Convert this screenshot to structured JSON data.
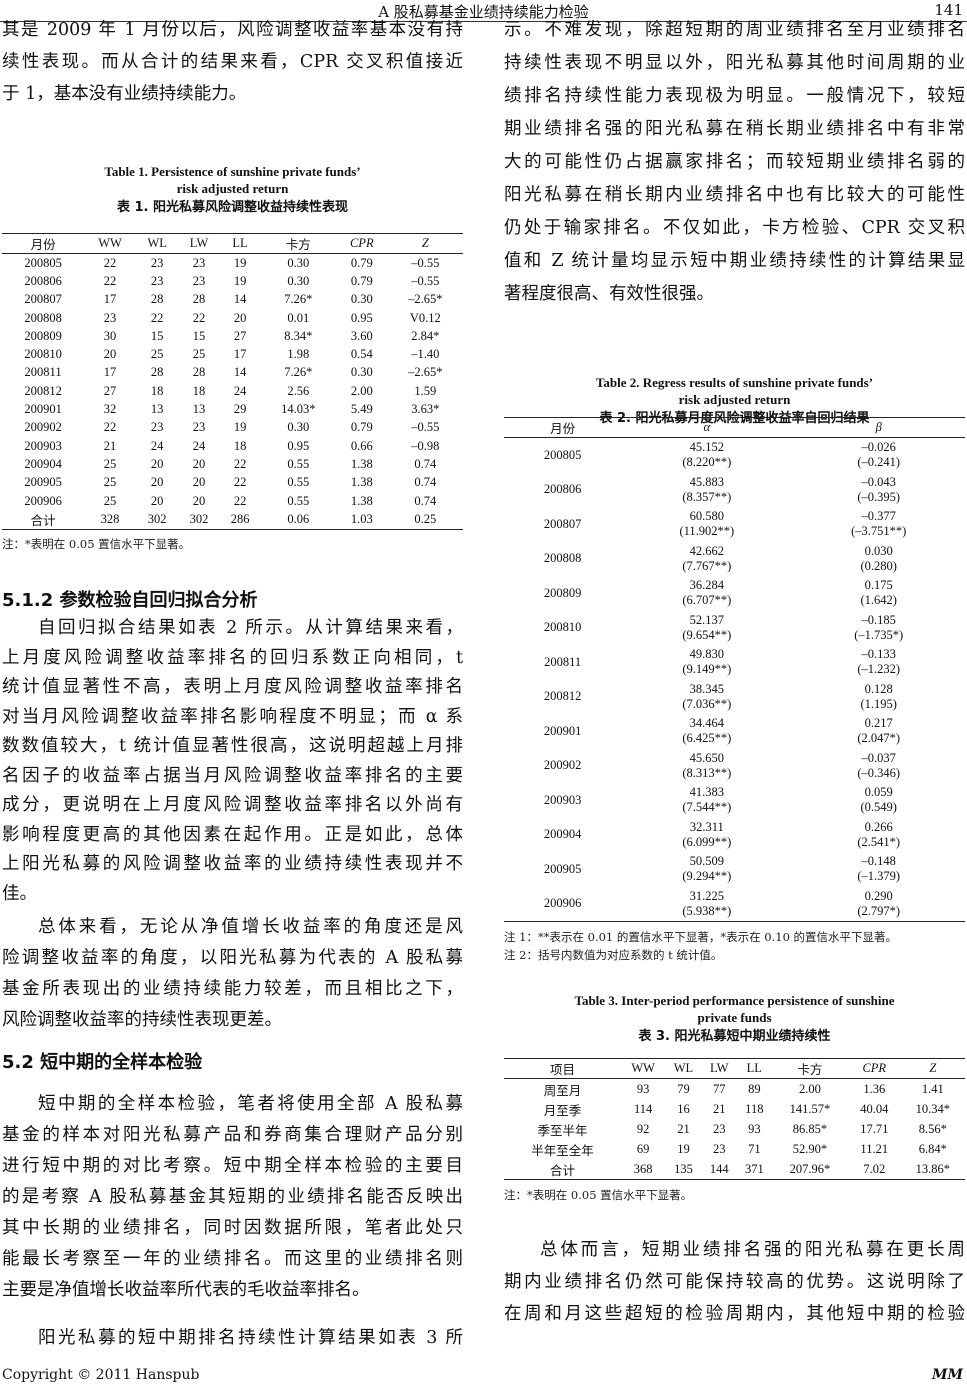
{
  "header": {
    "title": "A 股私募基金业绩持续能力检验",
    "page": "141"
  },
  "footer": {
    "copyright": "Copyright © 2011 Hanspub",
    "journal": "MM"
  },
  "left": {
    "para1": [
      "其是 2009 年 1 月份以后，风险调整收益率基本没有持",
      "续性表现。而从合计的结果来看，CPR 交叉积值接近",
      "于 1，基本没有业绩持续能力。"
    ],
    "section_512": "5.1.2  参数检验自回归拟合分析",
    "para2": [
      "自回归拟合结果如表 2 所示。从计算结果来看，",
      "上月度风险调整收益率排名的回归系数正向相同，t",
      "统计值显著性不高，表明上月度风险调整收益率排名",
      "对当月风险调整收益率排名影响程度不明显；而 α 系",
      "数数值较大，t 统计值显著性很高，这说明超越上月排",
      "名因子的收益率占据当月风险调整收益率排名的主要",
      "成分，更说明在上月度风险调整收益率排名以外尚有",
      "影响程度更高的其他因素在起作用。正是如此，总体",
      "上阳光私募的风险调整收益率的业绩持续性表现并不",
      "佳。"
    ],
    "para3": [
      "总体来看，无论从净值增长收益率的角度还是风",
      "险调整收益率的角度，以阳光私募为代表的 A 股私募",
      "基金所表现出的业绩持续能力较差，而且相比之下，",
      "风险调整收益率的持续性表现更差。"
    ],
    "section_52": "5.2  短中期的全样本检验",
    "para4": [
      "短中期的全样本检验，笔者将使用全部 A 股私募",
      "基金的样本对阳光私募产品和券商集合理财产品分别",
      "进行短中期的对比考察。短中期全样本检验的主要目",
      "的是考察 A 股私募基金其短期的业绩排名能否反映出",
      "其中长期的业绩排名，同时因数据所限，笔者此处只",
      "能最长考察至一年的业绩排名。而这里的业绩排名则",
      "主要是净值增长收益率所代表的毛收益率排名。"
    ],
    "para5": [
      "阳光私募的短中期排名持续性计算结果如表 3 所"
    ]
  },
  "right": {
    "para1": [
      "示。不难发现，除超短期的周业绩排名至月业绩排名",
      "持续性表现不明显以外，阳光私募其他时间周期的业",
      "绩排名持续性能力表现极为明显。一般情况下，较短",
      "期业绩排名强的阳光私募在稍长期业绩排名中有非常",
      "大的可能性仍占据赢家排名；而较短期业绩排名弱的",
      "阳光私募在稍长期内业绩排名中也有比较大的可能性",
      "仍处于输家排名。不仅如此，卡方检验、CPR 交叉积",
      "值和 Z 统计量均显示短中期业绩持续性的计算结果显",
      "著程度很高、有效性很强。"
    ],
    "para2": [
      "总体而言，短期业绩排名强的阳光私募在更长周",
      "期内业绩排名仍然可能保持较高的优势。这说明除了",
      "在周和月这些超短的检验周期内，其他短中期的检验"
    ]
  },
  "table1": {
    "title_en1": "Table 1. Persistence of sunshine private funds’",
    "title_en2": "risk adjusted return",
    "title_cn": "表 1.  阳光私募风险调整收益持续性表现",
    "headers": [
      "月份",
      "WW",
      "WL",
      "LW",
      "LL",
      "卡方",
      "CPR",
      "Z"
    ],
    "rows": [
      [
        "200805",
        "22",
        "23",
        "23",
        "19",
        "0.30",
        "0.79",
        "–0.55"
      ],
      [
        "200806",
        "22",
        "23",
        "23",
        "19",
        "0.30",
        "0.79",
        "–0.55"
      ],
      [
        "200807",
        "17",
        "28",
        "28",
        "14",
        "7.26*",
        "0.30",
        "–2.65*"
      ],
      [
        "200808",
        "23",
        "22",
        "22",
        "20",
        "0.01",
        "0.95",
        "V0.12"
      ],
      [
        "200809",
        "30",
        "15",
        "15",
        "27",
        "8.34*",
        "3.60",
        "2.84*"
      ],
      [
        "200810",
        "20",
        "25",
        "25",
        "17",
        "1.98",
        "0.54",
        "–1.40"
      ],
      [
        "200811",
        "17",
        "28",
        "28",
        "14",
        "7.26*",
        "0.30",
        "–2.65*"
      ],
      [
        "200812",
        "27",
        "18",
        "18",
        "24",
        "2.56",
        "2.00",
        "1.59"
      ],
      [
        "200901",
        "32",
        "13",
        "13",
        "29",
        "14.03*",
        "5.49",
        "3.63*"
      ],
      [
        "200902",
        "22",
        "23",
        "23",
        "19",
        "0.30",
        "0.79",
        "–0.55"
      ],
      [
        "200903",
        "21",
        "24",
        "24",
        "18",
        "0.95",
        "0.66",
        "–0.98"
      ],
      [
        "200904",
        "25",
        "20",
        "20",
        "22",
        "0.55",
        "1.38",
        "0.74"
      ],
      [
        "200905",
        "25",
        "20",
        "20",
        "22",
        "0.55",
        "1.38",
        "0.74"
      ],
      [
        "200906",
        "25",
        "20",
        "20",
        "22",
        "0.55",
        "1.38",
        "0.74"
      ],
      [
        "合计",
        "328",
        "302",
        "302",
        "286",
        "0.06",
        "1.03",
        "0.25"
      ]
    ],
    "note": "注：*表明在 0.05 置信水平下显著。"
  },
  "table2": {
    "title_en1": "Table 2. Regress results of sunshine private funds’",
    "title_en2": "risk adjusted return",
    "title_cn": "表 2.  阳光私募月度风险调整收益率自回归结果",
    "headers": [
      "月份",
      "α",
      "β"
    ],
    "rows": [
      [
        "200805",
        "45.152",
        "(8.220**)",
        "–0.026",
        "(–0.241)"
      ],
      [
        "200806",
        "45.883",
        "(8.357**)",
        "–0.043",
        "(–0.395)"
      ],
      [
        "200807",
        "60.580",
        "(11.902**)",
        "–0.377",
        "(–3.751**)"
      ],
      [
        "200808",
        "42.662",
        "(7.767**)",
        "0.030",
        "(0.280)"
      ],
      [
        "200809",
        "36.284",
        "(6.707**)",
        "0.175",
        "(1.642)"
      ],
      [
        "200810",
        "52.137",
        "(9.654**)",
        "–0.185",
        "(–1.735*)"
      ],
      [
        "200811",
        "49.830",
        "(9.149**)",
        "–0.133",
        "(–1.232)"
      ],
      [
        "200812",
        "38.345",
        "(7.036**)",
        "0.128",
        "(1.195)"
      ],
      [
        "200901",
        "34.464",
        "(6.425**)",
        "0.217",
        "(2.047*)"
      ],
      [
        "200902",
        "45.650",
        "(8.313**)",
        "–0.037",
        "(–0.346)"
      ],
      [
        "200903",
        "41.383",
        "(7.544**)",
        "0.059",
        "(0.549)"
      ],
      [
        "200904",
        "32.311",
        "(6.099**)",
        "0.266",
        "(2.541*)"
      ],
      [
        "200905",
        "50.509",
        "(9.294**)",
        "–0.148",
        "(–1.379)"
      ],
      [
        "200906",
        "31.225",
        "(5.938**)",
        "0.290",
        "(2.797*)"
      ]
    ],
    "note1": "注 1：**表示在 0.01 的置信水平下显著，*表示在 0.10 的置信水平下显著。",
    "note2": "注 2：括号内数值为对应系数的 t 统计值。"
  },
  "table3": {
    "title_en1": "Table 3. Inter-period performance persistence of sunshine",
    "title_en2": "private funds",
    "title_cn": "表 3.  阳光私募短中期业绩持续性",
    "headers": [
      "项目",
      "WW",
      "WL",
      "LW",
      "LL",
      "卡方",
      "CPR",
      "Z"
    ],
    "rows": [
      [
        "周至月",
        "93",
        "79",
        "77",
        "89",
        "2.00",
        "1.36",
        "1.41"
      ],
      [
        "月至季",
        "114",
        "16",
        "21",
        "118",
        "141.57*",
        "40.04",
        "10.34*"
      ],
      [
        "季至半年",
        "92",
        "21",
        "23",
        "93",
        "86.85*",
        "17.71",
        "8.56*"
      ],
      [
        "半年至全年",
        "69",
        "19",
        "23",
        "71",
        "52.90*",
        "11.21",
        "6.84*"
      ],
      [
        "合计",
        "368",
        "135",
        "144",
        "371",
        "207.96*",
        "7.02",
        "13.86*"
      ]
    ],
    "note": "注：*表明在 0.05 置信水平下显著。"
  }
}
